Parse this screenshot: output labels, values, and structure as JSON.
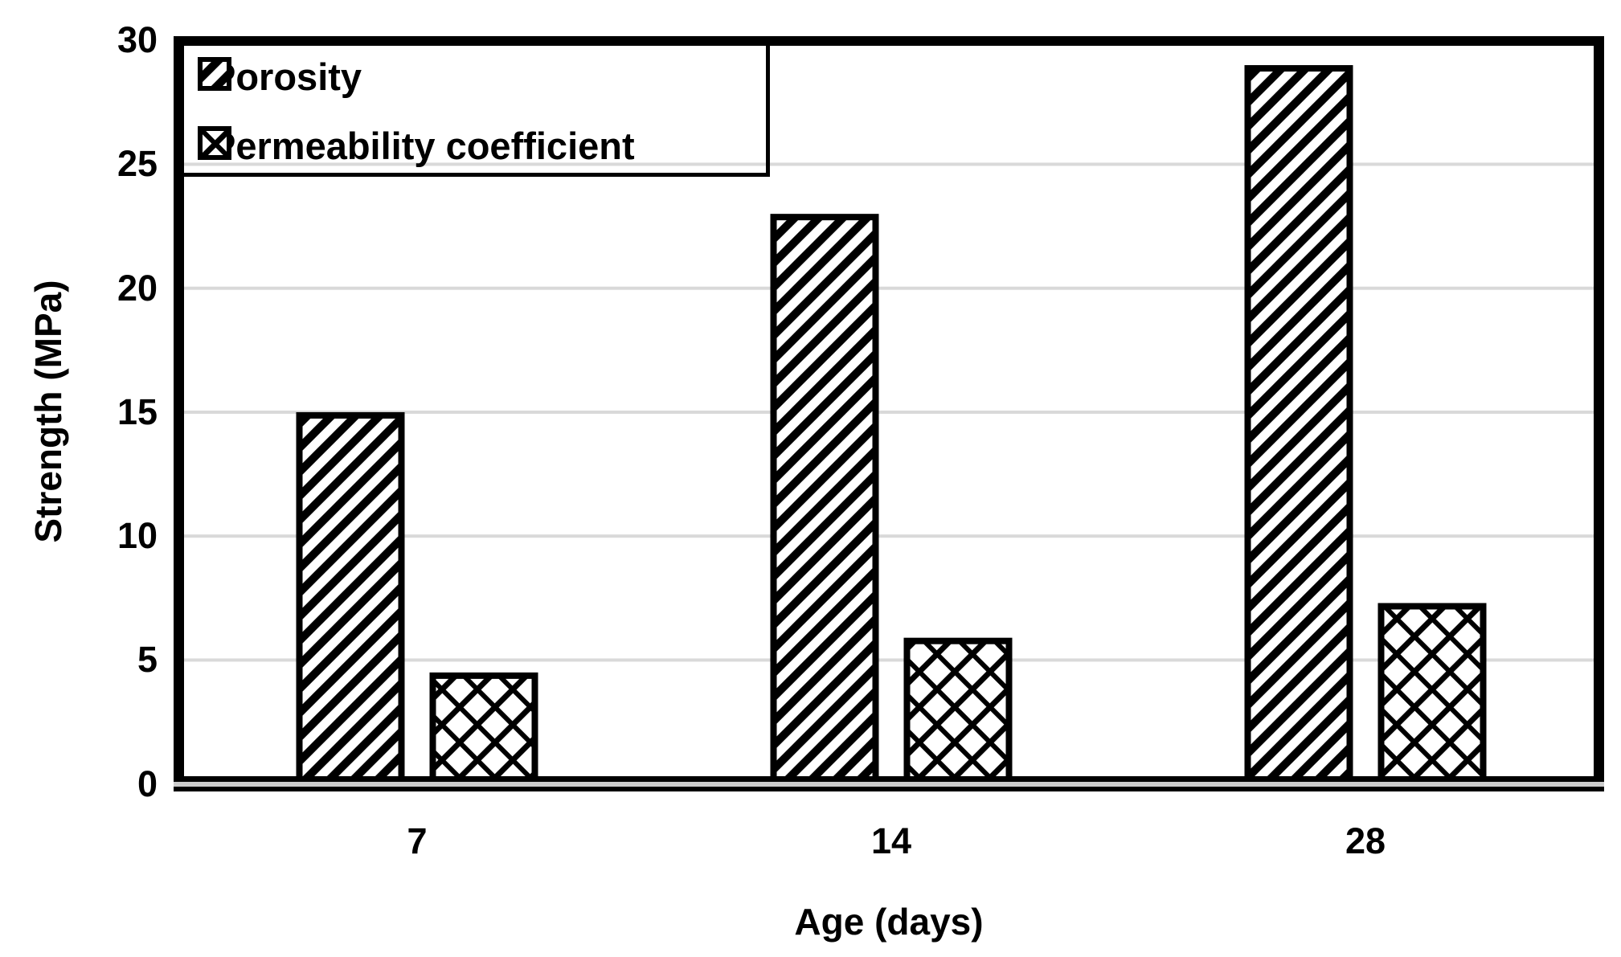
{
  "chart_data": {
    "type": "bar",
    "title": "",
    "categories": [
      "7",
      "14",
      "28"
    ],
    "series": [
      {
        "name": "Porosity",
        "values": [
          15,
          23,
          29
        ],
        "hatch": "diagonal"
      },
      {
        "name": "Permeability coefficient",
        "values": [
          4.5,
          5.9,
          7.3
        ],
        "hatch": "diagonal-crosshatch"
      }
    ],
    "xlabel": "Age (days)",
    "ylabel": "Strength (MPa)",
    "ylim": [
      0,
      30
    ],
    "yticks": [
      0,
      5,
      10,
      15,
      20,
      25,
      30
    ],
    "ytick_labels": [
      "0",
      "5",
      "10",
      "15",
      "20",
      "25",
      "30"
    ],
    "grid": true,
    "gridline_color": "#d9d9d9",
    "bar_outline_color": "#000000",
    "bar_fill_background": "#ffffff",
    "frame_color": "#000000",
    "background": "#ffffff",
    "legend_position": "top-left"
  }
}
